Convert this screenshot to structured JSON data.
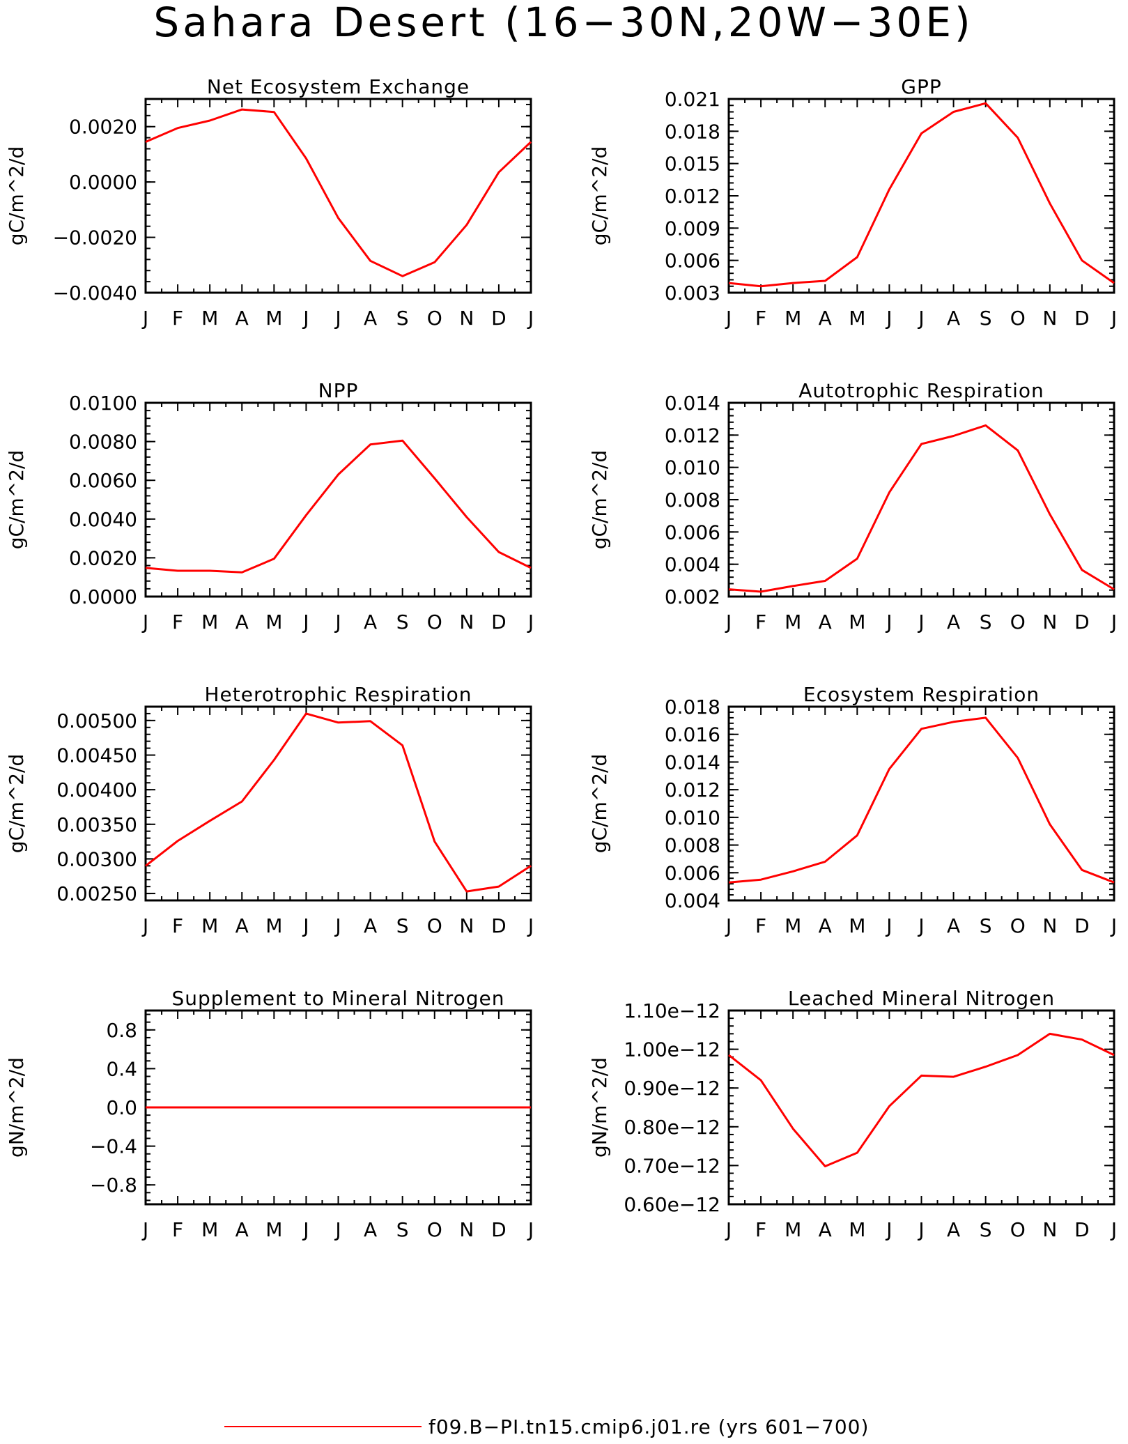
{
  "figure_title": "Sahara Desert (16−30N,20W−30E)",
  "legend": {
    "label": "f09.B−PI.tn15.cmip6.j01.re (yrs 601−700)",
    "color": "#ff0000"
  },
  "colors": {
    "line": "#ff0000",
    "axis": "#000000",
    "background": "#ffffff"
  },
  "chart_data": [
    {
      "type": "line",
      "title": "Net Ecosystem Exchange",
      "ylabel": "gC/m^2/d",
      "categories": [
        "J",
        "F",
        "M",
        "A",
        "M",
        "J",
        "J",
        "A",
        "S",
        "O",
        "N",
        "D",
        "J"
      ],
      "ylim": [
        -0.004,
        0.003
      ],
      "yticks": [
        -0.004,
        -0.002,
        0.0,
        0.002
      ],
      "ytick_labels": [
        "−0.0040",
        "−0.0020",
        "0.0000",
        "0.0020"
      ],
      "series": [
        {
          "values": [
            0.00145,
            0.00195,
            0.00222,
            0.00262,
            0.00253,
            0.00085,
            -0.0013,
            -0.00285,
            -0.0034,
            -0.0029,
            -0.00155,
            0.00035,
            0.00145
          ]
        }
      ]
    },
    {
      "type": "line",
      "title": "GPP",
      "ylabel": "gC/m^2/d",
      "categories": [
        "J",
        "F",
        "M",
        "A",
        "M",
        "J",
        "J",
        "A",
        "S",
        "O",
        "N",
        "D",
        "J"
      ],
      "ylim": [
        0.003,
        0.021
      ],
      "yticks": [
        0.003,
        0.006,
        0.009,
        0.012,
        0.015,
        0.018,
        0.021
      ],
      "ytick_labels": [
        "0.003",
        "0.006",
        "0.009",
        "0.012",
        "0.015",
        "0.018",
        "0.021"
      ],
      "series": [
        {
          "values": [
            0.0039,
            0.0036,
            0.0039,
            0.0041,
            0.0063,
            0.0126,
            0.0178,
            0.0198,
            0.0206,
            0.0174,
            0.0113,
            0.006,
            0.0039
          ]
        }
      ]
    },
    {
      "type": "line",
      "title": "NPP",
      "ylabel": "gC/m^2/d",
      "categories": [
        "J",
        "F",
        "M",
        "A",
        "M",
        "J",
        "J",
        "A",
        "S",
        "O",
        "N",
        "D",
        "J"
      ],
      "ylim": [
        0.0,
        0.01
      ],
      "yticks": [
        0.0,
        0.002,
        0.004,
        0.006,
        0.008,
        0.01
      ],
      "ytick_labels": [
        "0.0000",
        "0.0020",
        "0.0040",
        "0.0060",
        "0.0080",
        "0.0100"
      ],
      "series": [
        {
          "values": [
            0.00148,
            0.00133,
            0.00133,
            0.00125,
            0.00195,
            0.0042,
            0.0063,
            0.00785,
            0.00805,
            0.0061,
            0.0041,
            0.0023,
            0.00148
          ]
        }
      ]
    },
    {
      "type": "line",
      "title": "Autotrophic Respiration",
      "ylabel": "gC/m^2/d",
      "categories": [
        "J",
        "F",
        "M",
        "A",
        "M",
        "J",
        "J",
        "A",
        "S",
        "O",
        "N",
        "D",
        "J"
      ],
      "ylim": [
        0.002,
        0.014
      ],
      "yticks": [
        0.002,
        0.004,
        0.006,
        0.008,
        0.01,
        0.012,
        0.014
      ],
      "ytick_labels": [
        "0.002",
        "0.004",
        "0.006",
        "0.008",
        "0.010",
        "0.012",
        "0.014"
      ],
      "series": [
        {
          "values": [
            0.00245,
            0.0023,
            0.00265,
            0.00297,
            0.00435,
            0.00845,
            0.01145,
            0.01195,
            0.0126,
            0.01105,
            0.0071,
            0.00365,
            0.00245
          ]
        }
      ]
    },
    {
      "type": "line",
      "title": "Heterotrophic Respiration",
      "ylabel": "gC/m^2/d",
      "categories": [
        "J",
        "F",
        "M",
        "A",
        "M",
        "J",
        "J",
        "A",
        "S",
        "O",
        "N",
        "D",
        "J"
      ],
      "ylim": [
        0.0024,
        0.0052
      ],
      "yticks": [
        0.0025,
        0.003,
        0.0035,
        0.004,
        0.0045,
        0.005
      ],
      "ytick_labels": [
        "0.00250",
        "0.00300",
        "0.00350",
        "0.00400",
        "0.00450",
        "0.00500"
      ],
      "series": [
        {
          "values": [
            0.0029,
            0.00326,
            0.00355,
            0.00383,
            0.00443,
            0.0051,
            0.00497,
            0.00499,
            0.00464,
            0.00325,
            0.00253,
            0.0026,
            0.0029
          ]
        }
      ]
    },
    {
      "type": "line",
      "title": "Ecosystem Respiration",
      "ylabel": "gC/m^2/d",
      "categories": [
        "J",
        "F",
        "M",
        "A",
        "M",
        "J",
        "J",
        "A",
        "S",
        "O",
        "N",
        "D",
        "J"
      ],
      "ylim": [
        0.004,
        0.018
      ],
      "yticks": [
        0.004,
        0.006,
        0.008,
        0.01,
        0.012,
        0.014,
        0.016,
        0.018
      ],
      "ytick_labels": [
        "0.004",
        "0.006",
        "0.008",
        "0.010",
        "0.012",
        "0.014",
        "0.016",
        "0.018"
      ],
      "series": [
        {
          "values": [
            0.0053,
            0.0055,
            0.0061,
            0.0068,
            0.0087,
            0.0135,
            0.0164,
            0.0169,
            0.0172,
            0.0143,
            0.0095,
            0.0062,
            0.0053
          ]
        }
      ]
    },
    {
      "type": "line",
      "title": "Supplement to Mineral Nitrogen",
      "ylabel": "gN/m^2/d",
      "categories": [
        "J",
        "F",
        "M",
        "A",
        "M",
        "J",
        "J",
        "A",
        "S",
        "O",
        "N",
        "D",
        "J"
      ],
      "ylim": [
        -1.0,
        1.0
      ],
      "yticks": [
        -0.8,
        -0.4,
        0.0,
        0.4,
        0.8
      ],
      "ytick_labels": [
        "−0.8",
        "−0.4",
        "0.0",
        "0.4",
        "0.8"
      ],
      "series": [
        {
          "values": [
            0,
            0,
            0,
            0,
            0,
            0,
            0,
            0,
            0,
            0,
            0,
            0,
            0
          ]
        }
      ]
    },
    {
      "type": "line",
      "title": "Leached Mineral Nitrogen",
      "ylabel": "gN/m^2/d",
      "categories": [
        "J",
        "F",
        "M",
        "A",
        "M",
        "J",
        "J",
        "A",
        "S",
        "O",
        "N",
        "D",
        "J"
      ],
      "ylim": [
        6e-13,
        1.1e-12
      ],
      "yticks": [
        6e-13,
        7e-13,
        8e-13,
        9e-13,
        1e-12,
        1.1e-12
      ],
      "ytick_labels": [
        "0.60e−12",
        "0.70e−12",
        "0.80e−12",
        "0.90e−12",
        "1.00e−12",
        "1.10e−12"
      ],
      "series": [
        {
          "values": [
            9.85e-13,
            9.2e-13,
            7.95e-13,
            6.98e-13,
            7.33e-13,
            8.53e-13,
            9.32e-13,
            9.29e-13,
            9.55e-13,
            9.85e-13,
            1.04e-12,
            1.025e-12,
            9.85e-13
          ]
        }
      ]
    }
  ]
}
